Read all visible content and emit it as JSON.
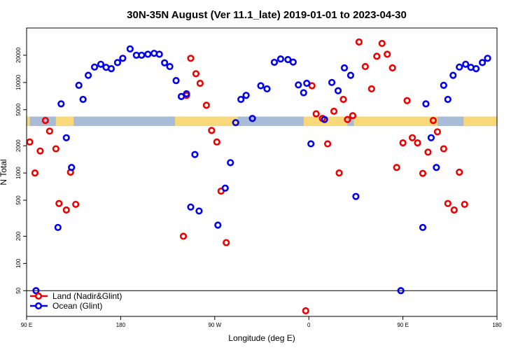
{
  "chart_data": {
    "type": "scatter",
    "title": "30N-35N August (Ver 11.1_late)   2019-01-01 to 2023-04-30",
    "xlabel": "Longitude (deg E)",
    "ylabel": "N Total",
    "x_ticks": [
      {
        "value": 90,
        "label": "90 E"
      },
      {
        "value": 180,
        "label": "180"
      },
      {
        "value": 270,
        "label": "90 W"
      },
      {
        "value": 360,
        "label": "0"
      },
      {
        "value": 450,
        "label": "90 E"
      },
      {
        "value": 540,
        "label": "180"
      }
    ],
    "xlim": [
      90,
      540
    ],
    "y_scale": "log",
    "ylim": [
      26,
      40000
    ],
    "y_ticks": [
      50,
      100,
      200,
      500,
      1000,
      2000,
      5000,
      10000,
      20000
    ],
    "reference_line_y": 50,
    "land_mask_band": {
      "y_bottom": 3300,
      "y_top": 4200,
      "ocean_color": "#a8bcd8",
      "land_color": "#f8d878"
    },
    "series": [
      {
        "name": "Land (Nadir&Glint)",
        "color": "#ee0000",
        "points": [
          [
            93,
            2200
          ],
          [
            98,
            1000
          ],
          [
            103,
            1750
          ],
          [
            108,
            3800
          ],
          [
            112,
            2900
          ],
          [
            118,
            1850
          ],
          [
            121,
            460
          ],
          [
            128,
            390
          ],
          [
            132,
            1020
          ],
          [
            137,
            450
          ],
          [
            240,
            200
          ],
          [
            243,
            7200
          ],
          [
            247,
            18500
          ],
          [
            252,
            12500
          ],
          [
            256,
            9800
          ],
          [
            262,
            5600
          ],
          [
            267,
            2950
          ],
          [
            272,
            2200
          ],
          [
            276,
            630
          ],
          [
            281,
            170
          ],
          [
            357,
            30
          ],
          [
            363,
            9200
          ],
          [
            367,
            4500
          ],
          [
            373,
            4000
          ],
          [
            378,
            2100
          ],
          [
            384,
            4800
          ],
          [
            389,
            1000
          ],
          [
            393,
            6500
          ],
          [
            397,
            3900
          ],
          [
            402,
            4300
          ],
          [
            408,
            28000
          ],
          [
            414,
            15000
          ],
          [
            420,
            8500
          ],
          [
            425,
            19500
          ],
          [
            430,
            27000
          ],
          [
            435,
            20500
          ],
          [
            440,
            14500
          ],
          [
            444,
            1150
          ],
          [
            450,
            2150
          ],
          [
            454,
            6300
          ],
          [
            459,
            2450
          ],
          [
            464,
            2150
          ],
          [
            469,
            990
          ],
          [
            474,
            1700
          ],
          [
            479,
            3800
          ],
          [
            483,
            2850
          ],
          [
            489,
            1850
          ],
          [
            493,
            460
          ],
          [
            499,
            390
          ],
          [
            504,
            1020
          ],
          [
            509,
            450
          ]
        ]
      },
      {
        "name": "Ocean (Glint)",
        "color": "#0000ee",
        "points": [
          [
            99,
            50
          ],
          [
            120,
            250
          ],
          [
            123,
            5800
          ],
          [
            128,
            2450
          ],
          [
            133,
            1150
          ],
          [
            140,
            9300
          ],
          [
            144,
            6500
          ],
          [
            149,
            12000
          ],
          [
            155,
            14800
          ],
          [
            161,
            15900
          ],
          [
            166,
            14700
          ],
          [
            171,
            14200
          ],
          [
            177,
            16600
          ],
          [
            182,
            18500
          ],
          [
            189,
            23500
          ],
          [
            195,
            20000
          ],
          [
            200,
            20000
          ],
          [
            206,
            20500
          ],
          [
            212,
            21000
          ],
          [
            217,
            20500
          ],
          [
            222,
            16500
          ],
          [
            227,
            15000
          ],
          [
            233,
            10500
          ],
          [
            238,
            7000
          ],
          [
            243,
            7500
          ],
          [
            247,
            420
          ],
          [
            251,
            1600
          ],
          [
            255,
            380
          ],
          [
            273,
            265
          ],
          [
            280,
            680
          ],
          [
            285,
            1300
          ],
          [
            290,
            3600
          ],
          [
            295,
            6500
          ],
          [
            300,
            7200
          ],
          [
            306,
            4000
          ],
          [
            314,
            9200
          ],
          [
            320,
            8500
          ],
          [
            327,
            16700
          ],
          [
            333,
            18200
          ],
          [
            340,
            17900
          ],
          [
            345,
            16800
          ],
          [
            350,
            9400
          ],
          [
            355,
            7700
          ],
          [
            358,
            9800
          ],
          [
            362,
            2100
          ],
          [
            375,
            3900
          ],
          [
            382,
            10000
          ],
          [
            388,
            8100
          ],
          [
            394,
            14500
          ],
          [
            400,
            12000
          ],
          [
            405,
            550
          ],
          [
            448,
            50
          ],
          [
            469,
            250
          ],
          [
            472,
            5800
          ],
          [
            477,
            2450
          ],
          [
            482,
            1150
          ],
          [
            489,
            9300
          ],
          [
            493,
            6500
          ],
          [
            498,
            12000
          ],
          [
            504,
            14800
          ],
          [
            510,
            15900
          ],
          [
            515,
            14700
          ],
          [
            520,
            14200
          ],
          [
            526,
            16600
          ],
          [
            531,
            18500
          ]
        ]
      }
    ],
    "legend": {
      "position": "bottom-left"
    }
  }
}
